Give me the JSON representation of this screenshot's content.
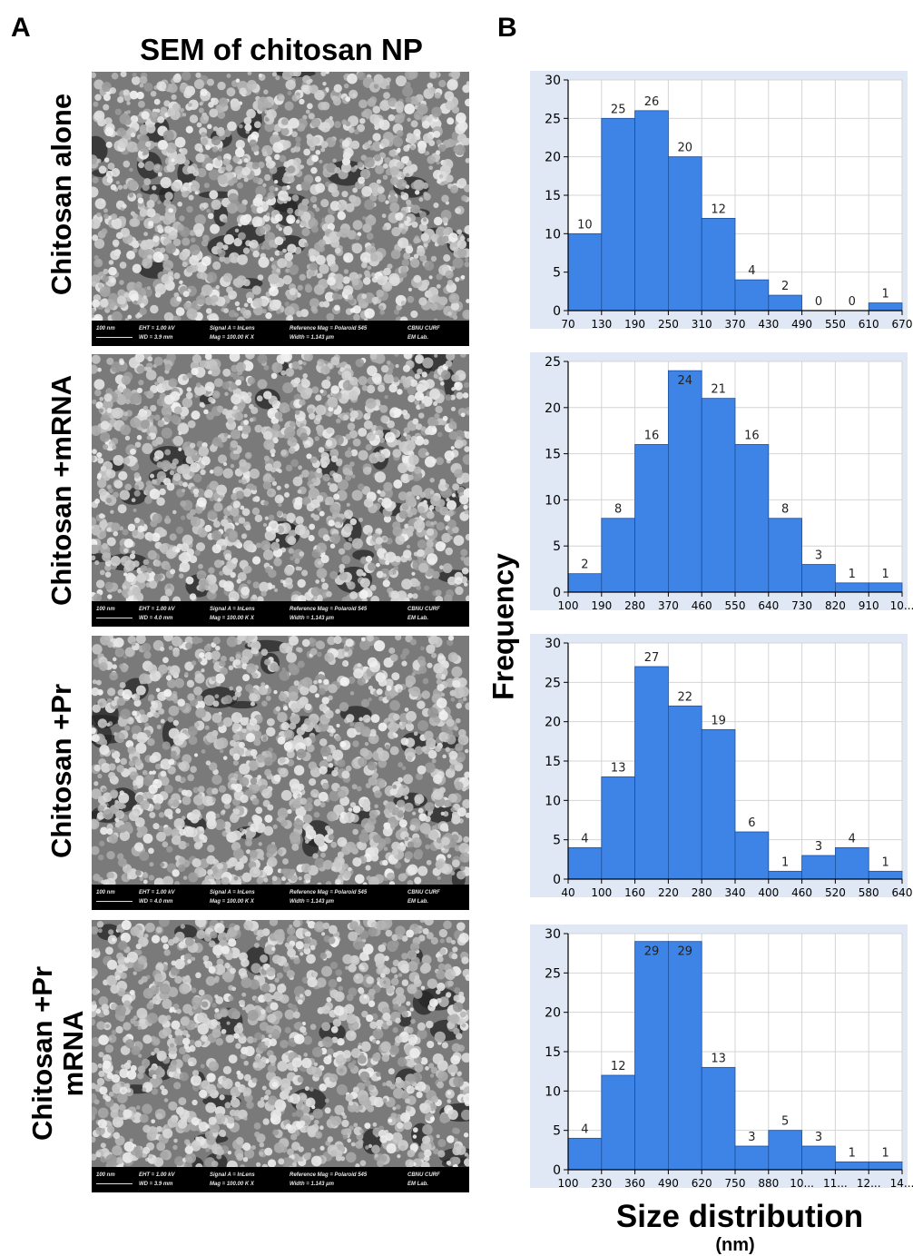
{
  "panels": {
    "a_letter": "A",
    "b_letter": "B",
    "sem_title": "SEM of chitosan NP"
  },
  "sem_rows": [
    {
      "label": "Chitosan alone",
      "wd": "WD = 3.9 mm"
    },
    {
      "label": "Chitosan +mRNA",
      "wd": "WD = 4.0 mm"
    },
    {
      "label": "Chitosan +Pr",
      "wd": "WD = 4.0 mm"
    },
    {
      "label": "Chitosan +Pr mRNA",
      "label_line1": "Chitosan +Pr",
      "label_line2": "mRNA",
      "wd": "WD = 3.9 mm"
    }
  ],
  "sem_info": {
    "scale": "100 nm",
    "eht": "EHT = 1.00 kV",
    "signal": "Signal A = InLens",
    "mag": "Mag = 100.00 K X",
    "ref_mag": "Reference Mag = Polaroid 545",
    "width": "Width = 1.143 µm",
    "lab1": "CBNU CURF",
    "lab2": "EM Lab."
  },
  "axes": {
    "ylabel": "Frequency",
    "xlabel": "Size distribution",
    "xunit": "(nm)"
  },
  "colors": {
    "bar": "#3d84e6",
    "bar_edge": "#1f4f9c",
    "grid": "#d4d4d4",
    "bg": "#ffffff",
    "frame": "#dfe8f4"
  },
  "chart_data": [
    {
      "type": "bar",
      "xlabel": "",
      "ylabel": "",
      "ylim": [
        0,
        30
      ],
      "yticks": [
        0,
        5,
        10,
        15,
        20,
        25,
        30
      ],
      "xticks": [
        "70",
        "130",
        "190",
        "250",
        "310",
        "370",
        "430",
        "490",
        "550",
        "610",
        "670"
      ],
      "values": [
        10,
        25,
        26,
        20,
        12,
        4,
        2,
        0,
        0,
        1
      ]
    },
    {
      "type": "bar",
      "xlabel": "",
      "ylabel": "",
      "ylim": [
        0,
        25
      ],
      "yticks": [
        0,
        5,
        10,
        15,
        20,
        25
      ],
      "xticks": [
        "100",
        "190",
        "280",
        "370",
        "460",
        "550",
        "640",
        "730",
        "820",
        "910",
        "10..."
      ],
      "values": [
        2,
        8,
        16,
        24,
        21,
        16,
        8,
        3,
        1,
        1
      ]
    },
    {
      "type": "bar",
      "xlabel": "",
      "ylabel": "",
      "ylim": [
        0,
        30
      ],
      "yticks": [
        0,
        5,
        10,
        15,
        20,
        25,
        30
      ],
      "xticks": [
        "40",
        "100",
        "160",
        "220",
        "280",
        "340",
        "400",
        "460",
        "520",
        "580",
        "640"
      ],
      "values": [
        4,
        13,
        27,
        22,
        19,
        6,
        1,
        3,
        4,
        1
      ]
    },
    {
      "type": "bar",
      "xlabel": "",
      "ylabel": "",
      "ylim": [
        0,
        30
      ],
      "yticks": [
        0,
        5,
        10,
        15,
        20,
        25,
        30
      ],
      "xticks": [
        "100",
        "230",
        "360",
        "490",
        "620",
        "750",
        "880",
        "10...",
        "11...",
        "12...",
        "14..."
      ],
      "values": [
        4,
        12,
        29,
        29,
        13,
        3,
        5,
        3,
        1,
        1
      ]
    }
  ]
}
